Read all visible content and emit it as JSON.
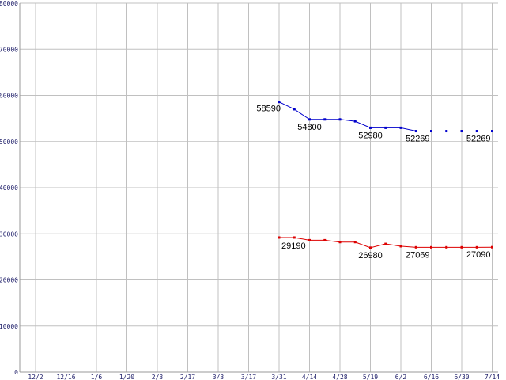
{
  "chart_data": {
    "type": "line",
    "title": "",
    "xlabel": "",
    "ylabel": "",
    "ylim": [
      0,
      80000
    ],
    "y_ticks": [
      0,
      10000,
      20000,
      30000,
      40000,
      50000,
      60000,
      70000,
      80000
    ],
    "x_tick_labels": [
      "12/2",
      "12/16",
      "1/6",
      "1/20",
      "2/3",
      "2/17",
      "3/3",
      "3/17",
      "3/31",
      "4/14",
      "4/28",
      "5/19",
      "6/2",
      "6/16",
      "6/30",
      "7/14"
    ],
    "grid": true,
    "legend": "none",
    "series": [
      {
        "color": "#0000cc",
        "x": [
          8,
          8.5,
          9,
          9.5,
          10,
          10.5,
          11,
          11.5,
          12,
          12.5,
          13,
          13.5,
          14,
          14.5,
          15
        ],
        "values": [
          58590,
          57000,
          54800,
          54800,
          54800,
          54400,
          52980,
          52980,
          52980,
          52269,
          52269,
          52269,
          52269,
          52269,
          52269
        ],
        "labels": [
          {
            "index": 0,
            "text": "58590"
          },
          {
            "index": 2,
            "text": "54800"
          },
          {
            "index": 6,
            "text": "52980"
          },
          {
            "index": 9,
            "text": "52269"
          },
          {
            "index": 14,
            "text": "52269"
          }
        ]
      },
      {
        "color": "#dd0000",
        "x": [
          8,
          8.5,
          9,
          9.5,
          10,
          10.5,
          11,
          11.5,
          12,
          12.5,
          13,
          13.5,
          14,
          14.5,
          15
        ],
        "values": [
          29190,
          29190,
          28600,
          28600,
          28200,
          28200,
          26980,
          27800,
          27300,
          27069,
          27069,
          27069,
          27069,
          27069,
          27090
        ],
        "labels": [
          {
            "index": 0,
            "text": "29190"
          },
          {
            "index": 6,
            "text": "26980"
          },
          {
            "index": 9,
            "text": "27069"
          },
          {
            "index": 14,
            "text": "27090"
          }
        ]
      }
    ]
  }
}
